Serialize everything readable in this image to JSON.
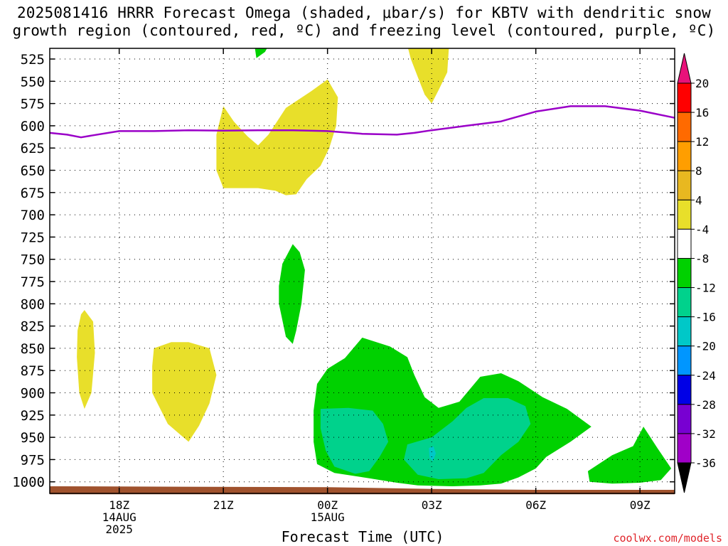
{
  "title_lines": [
    "2025081416 HRRR Forecast Omega (shaded, μbar/s) for KBTV with dendritic snow",
    "growth region (contoured, red, ºC) and freezing level (contoured, purple, ºC)"
  ],
  "credit": "coolwx.com/models",
  "chart_data": {
    "type": "contour",
    "xlabel": "Forecast Time (UTC)",
    "x_unit": "forecast hour (0 = 2025081416)",
    "xlim": [
      0,
      18
    ],
    "x_ticks": [
      {
        "value": 2,
        "lines": [
          "18Z",
          "14AUG",
          "2025"
        ]
      },
      {
        "value": 5,
        "lines": [
          "21Z"
        ]
      },
      {
        "value": 8,
        "lines": [
          "00Z",
          "15AUG"
        ]
      },
      {
        "value": 11,
        "lines": [
          "03Z"
        ]
      },
      {
        "value": 14,
        "lines": [
          "06Z"
        ]
      },
      {
        "value": 17,
        "lines": [
          "09Z"
        ]
      }
    ],
    "ylabel": "",
    "y_unit": "hPa",
    "ylim": [
      1013,
      513
    ],
    "y_ticks": [
      525,
      550,
      575,
      600,
      625,
      650,
      675,
      700,
      725,
      750,
      775,
      800,
      825,
      850,
      875,
      900,
      925,
      950,
      975,
      1000
    ],
    "grid": true,
    "colorbar": {
      "levels": [
        20,
        16,
        12,
        8,
        4,
        -4,
        -8,
        -12,
        -16,
        -20,
        -24,
        -28,
        -32,
        -36
      ],
      "colors": [
        "#ff0000",
        "#ff6a00",
        "#ff9e00",
        "#e8b820",
        "#e8df2a",
        "#ffffff",
        "#00d100",
        "#00d28c",
        "#00c8c8",
        "#0096ff",
        "#0000e6",
        "#7800d2",
        "#a000c8",
        "#a0a0a0"
      ],
      "top_arrow_color": "#e8127a",
      "bottom_arrow_color": "#000000"
    },
    "freezing_level": {
      "color": "#9a00c8",
      "points": [
        [
          0,
          608
        ],
        [
          0.5,
          610
        ],
        [
          0.9,
          613
        ],
        [
          1.2,
          611
        ],
        [
          2,
          606
        ],
        [
          3,
          606
        ],
        [
          4,
          605
        ],
        [
          5,
          605.5
        ],
        [
          6,
          605
        ],
        [
          7,
          605
        ],
        [
          8,
          606
        ],
        [
          9,
          609
        ],
        [
          10,
          610
        ],
        [
          10.5,
          608
        ],
        [
          11,
          605
        ],
        [
          12,
          600
        ],
        [
          13,
          595
        ],
        [
          14,
          584
        ],
        [
          15,
          578
        ],
        [
          16,
          578
        ],
        [
          17,
          583
        ],
        [
          18,
          591
        ]
      ]
    },
    "omega_regions": [
      {
        "level": "4 to 8",
        "color": "#e8df2a",
        "points": [
          [
            10.3,
            510
          ],
          [
            11.5,
            510
          ],
          [
            11.45,
            540
          ],
          [
            11.2,
            560
          ],
          [
            11.0,
            575
          ],
          [
            10.8,
            565
          ],
          [
            10.6,
            545
          ],
          [
            10.4,
            525
          ]
        ]
      },
      {
        "level": "4 to 8",
        "color": "#e8df2a",
        "points": [
          [
            5,
            578
          ],
          [
            5.3,
            595
          ],
          [
            5.7,
            612
          ],
          [
            6.0,
            622
          ],
          [
            6.3,
            610
          ],
          [
            6.8,
            580
          ],
          [
            7.5,
            562
          ],
          [
            8.0,
            548
          ],
          [
            8.3,
            568
          ],
          [
            8.25,
            600
          ],
          [
            8.05,
            625
          ],
          [
            7.8,
            645
          ],
          [
            7.4,
            660
          ],
          [
            7.1,
            677
          ],
          [
            6.8,
            678
          ],
          [
            6.5,
            673
          ],
          [
            6.0,
            670
          ],
          [
            5.0,
            670
          ],
          [
            4.8,
            650
          ],
          [
            4.8,
            610
          ]
        ]
      },
      {
        "level": "4 to 8",
        "color": "#e8df2a",
        "points": [
          [
            1.0,
            807
          ],
          [
            1.25,
            820
          ],
          [
            1.3,
            855
          ],
          [
            1.2,
            900
          ],
          [
            1.0,
            918
          ],
          [
            0.85,
            900
          ],
          [
            0.78,
            860
          ],
          [
            0.8,
            830
          ],
          [
            0.9,
            812
          ]
        ]
      },
      {
        "level": "4 to 8",
        "color": "#e8df2a",
        "points": [
          [
            3.0,
            850
          ],
          [
            3.5,
            843
          ],
          [
            4.0,
            843
          ],
          [
            4.6,
            850
          ],
          [
            4.8,
            880
          ],
          [
            4.6,
            912
          ],
          [
            4.3,
            937
          ],
          [
            4.0,
            955
          ],
          [
            3.4,
            935
          ],
          [
            2.95,
            900
          ],
          [
            2.95,
            870
          ]
        ]
      },
      {
        "level": "-4 to -8",
        "color": "#00d100",
        "points": [
          [
            5.9,
            510
          ],
          [
            6.3,
            510
          ],
          [
            6.2,
            517
          ],
          [
            5.95,
            524
          ]
        ]
      },
      {
        "level": "-4 to -8",
        "color": "#00d100",
        "points": [
          [
            7.0,
            733
          ],
          [
            7.2,
            742
          ],
          [
            7.35,
            762
          ],
          [
            7.25,
            800
          ],
          [
            7.1,
            830
          ],
          [
            7.0,
            845
          ],
          [
            6.8,
            837
          ],
          [
            6.6,
            800
          ],
          [
            6.6,
            780
          ],
          [
            6.7,
            755
          ]
        ]
      },
      {
        "level": "-4 to -8",
        "color": "#00d100",
        "points": [
          [
            9.0,
            838
          ],
          [
            9.8,
            848
          ],
          [
            10.3,
            860
          ],
          [
            10.5,
            880
          ],
          [
            10.8,
            905
          ],
          [
            11.2,
            917
          ],
          [
            11.8,
            910
          ],
          [
            12.4,
            882
          ],
          [
            13.0,
            878
          ],
          [
            13.5,
            887
          ],
          [
            14.2,
            905
          ],
          [
            14.9,
            918
          ],
          [
            15.6,
            938
          ],
          [
            15.0,
            955
          ],
          [
            14.3,
            972
          ],
          [
            14.0,
            985
          ],
          [
            13.5,
            995
          ],
          [
            13.0,
            1002
          ],
          [
            12.4,
            1004
          ],
          [
            11.6,
            1005
          ],
          [
            10.6,
            1004
          ],
          [
            10.0,
            1001
          ],
          [
            9.2,
            996
          ],
          [
            8.2,
            990
          ],
          [
            7.7,
            980
          ],
          [
            7.6,
            955
          ],
          [
            7.6,
            920
          ],
          [
            7.7,
            890
          ],
          [
            8.0,
            873
          ],
          [
            8.5,
            861
          ]
        ]
      },
      {
        "level": "-4 to -8",
        "color": "#00d100",
        "points": [
          [
            15.5,
            988
          ],
          [
            16.2,
            970
          ],
          [
            16.8,
            960
          ],
          [
            17.1,
            938
          ],
          [
            17.5,
            962
          ],
          [
            17.9,
            985
          ],
          [
            17.6,
            998
          ],
          [
            17.0,
            1001
          ],
          [
            16.2,
            1002
          ],
          [
            15.55,
            1000
          ]
        ]
      },
      {
        "level": "-8 to -12",
        "color": "#00d28c",
        "points": [
          [
            7.8,
            918
          ],
          [
            8.6,
            917
          ],
          [
            9.3,
            920
          ],
          [
            9.6,
            935
          ],
          [
            9.75,
            955
          ],
          [
            9.5,
            972
          ],
          [
            9.2,
            988
          ],
          [
            8.8,
            991
          ],
          [
            8.2,
            983
          ],
          [
            7.95,
            965
          ],
          [
            7.8,
            940
          ]
        ]
      },
      {
        "level": "-8 to -12",
        "color": "#00d28c",
        "points": [
          [
            10.3,
            958
          ],
          [
            11.0,
            950
          ],
          [
            11.6,
            932
          ],
          [
            12.0,
            917
          ],
          [
            12.5,
            906
          ],
          [
            13.2,
            906
          ],
          [
            13.7,
            915
          ],
          [
            13.85,
            935
          ],
          [
            13.5,
            955
          ],
          [
            13.0,
            970
          ],
          [
            12.5,
            990
          ],
          [
            12.0,
            996
          ],
          [
            11.2,
            997
          ],
          [
            10.6,
            992
          ],
          [
            10.2,
            975
          ]
        ]
      },
      {
        "level": "-12 to -16",
        "color": "#00c8c8",
        "points": [
          [
            10.92,
            962
          ],
          [
            11.05,
            960
          ],
          [
            11.12,
            968
          ],
          [
            11.04,
            977
          ],
          [
            10.94,
            973
          ]
        ]
      }
    ],
    "ground": {
      "color": "#a0522d",
      "top": [
        [
          0,
          1005
        ],
        [
          8,
          1006
        ],
        [
          11,
          1008
        ],
        [
          14,
          1009
        ],
        [
          18,
          1009
        ]
      ],
      "bottom": 1014
    }
  }
}
